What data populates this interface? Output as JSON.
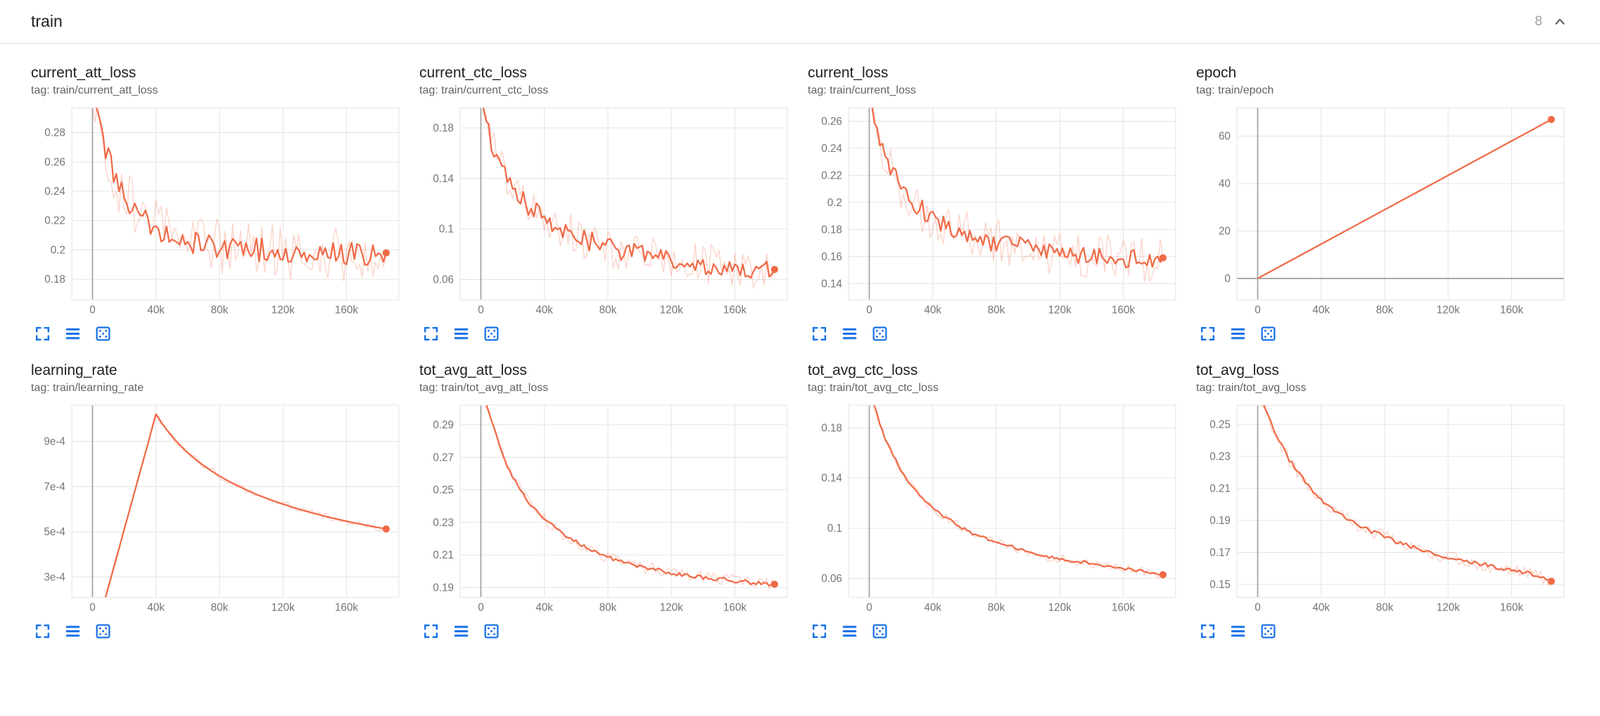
{
  "header": {
    "title": "train",
    "count": "8",
    "collapse_icon": "chevron-up-icon"
  },
  "colors": {
    "line": "#f06a47",
    "grid": "#e4e4e4",
    "axis": "#9e9e9e",
    "tick_text": "#757575",
    "icon_blue": "#1a73e8"
  },
  "card_buttons": [
    {
      "name": "expand-chart",
      "icon": "expand-icon"
    },
    {
      "name": "toggle-data-table",
      "icon": "data-table-icon"
    },
    {
      "name": "fit-domain-to-data",
      "icon": "fit-domain-icon"
    }
  ],
  "x_axis": {
    "min": -13000,
    "max": 193000,
    "tick_values": [
      0,
      40000,
      80000,
      120000,
      160000
    ],
    "tick_labels": [
      "0",
      "40k",
      "80k",
      "120k",
      "160k"
    ]
  },
  "chart_data": {
    "note": "see charts[] — each entry holds type, title, axis ranges, tick labels and series values"
  },
  "charts": [
    {
      "type": "line",
      "title": "current_att_loss",
      "tag": "tag: train/current_att_loss",
      "y_min": 0.166,
      "y_max": 0.297,
      "ytick_values": [
        0.18,
        0.2,
        0.22,
        0.24,
        0.26,
        0.28
      ],
      "ytick_labels": [
        "0.18",
        "0.2",
        "0.22",
        "0.24",
        "0.26",
        "0.28"
      ],
      "x_max": 185000,
      "noise": 0.008,
      "noise_raw": 0.019,
      "values": [
        0.31,
        0.285,
        0.262,
        0.247,
        0.237,
        0.23,
        0.224,
        0.219,
        0.215,
        0.212,
        0.21,
        0.208,
        0.206,
        0.205,
        0.204,
        0.203,
        0.202,
        0.202,
        0.201,
        0.201,
        0.2,
        0.2,
        0.2,
        0.199,
        0.199,
        0.199,
        0.198,
        0.198,
        0.198,
        0.198,
        0.197,
        0.197,
        0.197,
        0.197,
        0.197,
        0.197,
        0.197,
        0.198
      ]
    },
    {
      "type": "line",
      "title": "current_ctc_loss",
      "tag": "tag: train/current_ctc_loss",
      "y_min": 0.044,
      "y_max": 0.196,
      "ytick_values": [
        0.06,
        0.1,
        0.14,
        0.18
      ],
      "ytick_labels": [
        "0.06",
        "0.1",
        "0.14",
        "0.18"
      ],
      "x_max": 185000,
      "noise": 0.008,
      "noise_raw": 0.016,
      "values": [
        0.2,
        0.176,
        0.158,
        0.145,
        0.134,
        0.126,
        0.119,
        0.113,
        0.108,
        0.104,
        0.1,
        0.097,
        0.094,
        0.092,
        0.09,
        0.088,
        0.086,
        0.084,
        0.083,
        0.081,
        0.08,
        0.079,
        0.078,
        0.077,
        0.076,
        0.075,
        0.074,
        0.073,
        0.072,
        0.072,
        0.071,
        0.07,
        0.07,
        0.069,
        0.069,
        0.068,
        0.068,
        0.068
      ]
    },
    {
      "type": "line",
      "title": "current_loss",
      "tag": "tag: train/current_loss",
      "y_min": 0.128,
      "y_max": 0.27,
      "ytick_values": [
        0.14,
        0.16,
        0.18,
        0.2,
        0.22,
        0.24,
        0.26
      ],
      "ytick_labels": [
        "0.14",
        "0.16",
        "0.18",
        "0.2",
        "0.22",
        "0.24",
        "0.26"
      ],
      "x_max": 185000,
      "noise": 0.0075,
      "noise_raw": 0.017,
      "values": [
        0.276,
        0.252,
        0.234,
        0.221,
        0.211,
        0.204,
        0.198,
        0.193,
        0.189,
        0.185,
        0.182,
        0.18,
        0.177,
        0.175,
        0.173,
        0.172,
        0.17,
        0.169,
        0.168,
        0.167,
        0.166,
        0.165,
        0.164,
        0.163,
        0.162,
        0.162,
        0.161,
        0.16,
        0.16,
        0.159,
        0.159,
        0.158,
        0.158,
        0.158,
        0.157,
        0.157,
        0.157,
        0.159
      ]
    },
    {
      "type": "line",
      "title": "epoch",
      "tag": "tag: train/epoch",
      "y_min": -9,
      "y_max": 72,
      "ytick_values": [
        0,
        20,
        40,
        60
      ],
      "ytick_labels": [
        "0",
        "20",
        "40",
        "60"
      ],
      "x_max": 185000,
      "noise": 0,
      "noise_raw": 0,
      "values": [
        0,
        67
      ]
    },
    {
      "type": "line",
      "title": "learning_rate",
      "tag": "tag: train/learning_rate",
      "y_min": 0.00021,
      "y_max": 0.00106,
      "ytick_values": [
        0.0003,
        0.0005,
        0.0007,
        0.0009
      ],
      "ytick_labels": [
        "3e-4",
        "5e-4",
        "7e-4",
        "9e-4"
      ],
      "x_max": 185000,
      "noise": 0,
      "noise_raw": 1.5e-05,
      "values": [
        0,
        0.0001275,
        0.000255,
        0.0003825,
        0.00051,
        0.0006375,
        0.000765,
        0.0008925,
        0.00102,
        0.0009674,
        0.0009226,
        0.0008838,
        0.0008499,
        0.0008198,
        0.0007929,
        0.0007687,
        0.0007466,
        0.0007266,
        0.0007082,
        0.0006913,
        0.0006754,
        0.0006607,
        0.0006471,
        0.0006342,
        0.0006222,
        0.0006108,
        0.0006002,
        0.0005901,
        0.0005805,
        0.0005714,
        0.0005627,
        0.0005546,
        0.0005466,
        0.0005393,
        0.0005321,
        0.0005253,
        0.0005187,
        0.0005123
      ]
    },
    {
      "type": "line",
      "title": "tot_avg_att_loss",
      "tag": "tag: train/tot_avg_att_loss",
      "y_min": 0.184,
      "y_max": 0.302,
      "ytick_values": [
        0.19,
        0.21,
        0.23,
        0.25,
        0.27,
        0.29
      ],
      "ytick_labels": [
        "0.19",
        "0.21",
        "0.23",
        "0.25",
        "0.27",
        "0.29"
      ],
      "x_max": 185000,
      "noise": 0.0012,
      "noise_raw": 0.0038,
      "values": [
        0.315,
        0.298,
        0.282,
        0.268,
        0.258,
        0.25,
        0.243,
        0.237,
        0.232,
        0.228,
        0.224,
        0.221,
        0.218,
        0.215,
        0.213,
        0.211,
        0.209,
        0.207,
        0.206,
        0.204,
        0.203,
        0.202,
        0.201,
        0.2,
        0.199,
        0.198,
        0.198,
        0.197,
        0.196,
        0.196,
        0.195,
        0.195,
        0.194,
        0.194,
        0.193,
        0.193,
        0.192,
        0.192
      ]
    },
    {
      "type": "line",
      "title": "tot_avg_ctc_loss",
      "tag": "tag: train/tot_avg_ctc_loss",
      "y_min": 0.045,
      "y_max": 0.198,
      "ytick_values": [
        0.06,
        0.1,
        0.14,
        0.18
      ],
      "ytick_labels": [
        "0.06",
        "0.1",
        "0.14",
        "0.18"
      ],
      "x_max": 185000,
      "noise": 0.0012,
      "noise_raw": 0.0035,
      "values": [
        0.21,
        0.19,
        0.172,
        0.158,
        0.146,
        0.137,
        0.129,
        0.122,
        0.116,
        0.111,
        0.107,
        0.103,
        0.099,
        0.096,
        0.093,
        0.091,
        0.089,
        0.087,
        0.085,
        0.083,
        0.081,
        0.08,
        0.078,
        0.077,
        0.076,
        0.075,
        0.074,
        0.073,
        0.072,
        0.071,
        0.07,
        0.069,
        0.068,
        0.067,
        0.066,
        0.065,
        0.064,
        0.063
      ]
    },
    {
      "type": "line",
      "title": "tot_avg_loss",
      "tag": "tag: train/tot_avg_loss",
      "y_min": 0.142,
      "y_max": 0.262,
      "ytick_values": [
        0.15,
        0.17,
        0.19,
        0.21,
        0.23,
        0.25
      ],
      "ytick_labels": [
        "0.15",
        "0.17",
        "0.19",
        "0.21",
        "0.23",
        "0.25"
      ],
      "x_max": 185000,
      "noise": 0.0013,
      "noise_raw": 0.004,
      "values": [
        0.272,
        0.259,
        0.247,
        0.237,
        0.228,
        0.221,
        0.214,
        0.208,
        0.203,
        0.199,
        0.195,
        0.192,
        0.189,
        0.186,
        0.184,
        0.182,
        0.18,
        0.178,
        0.176,
        0.174,
        0.173,
        0.171,
        0.17,
        0.168,
        0.167,
        0.166,
        0.165,
        0.164,
        0.163,
        0.162,
        0.161,
        0.16,
        0.159,
        0.158,
        0.157,
        0.156,
        0.154,
        0.152
      ]
    }
  ]
}
